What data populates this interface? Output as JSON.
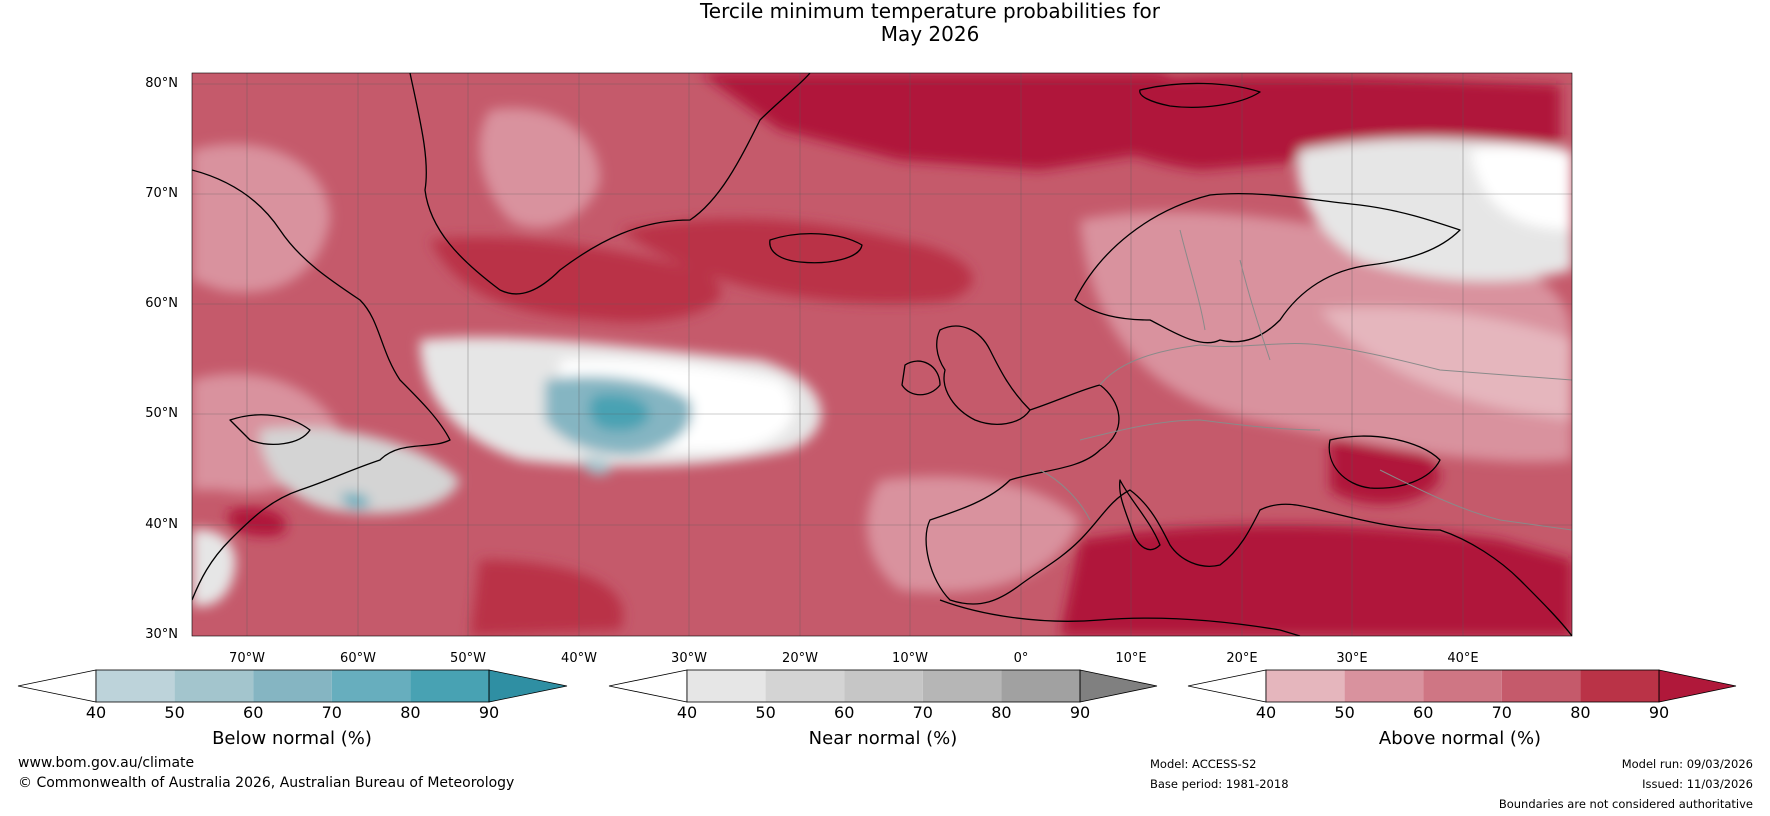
{
  "title_line1": "Tercile minimum temperature probabilities for",
  "title_line2": "May 2026",
  "map": {
    "lat_labels": [
      "80°N",
      "70°N",
      "60°N",
      "50°N",
      "40°N",
      "30°N"
    ],
    "lon_labels": [
      "70°W",
      "60°W",
      "50°W",
      "40°W",
      "30°W",
      "20°W",
      "10°W",
      "0°",
      "10°E",
      "20°E",
      "30°E",
      "40°E"
    ],
    "land_outline_color": "#000000",
    "border_color": "#8a8a8a"
  },
  "colorbars": [
    {
      "title": "Below normal (%)",
      "ticks": [
        "40",
        "50",
        "60",
        "70",
        "80",
        "90"
      ],
      "colors": [
        "#ffffff",
        "#bdd3da",
        "#a3c5cd",
        "#85b5c2",
        "#67aebe",
        "#48a2b3",
        "#2f8fa3"
      ]
    },
    {
      "title": "Near normal (%)",
      "ticks": [
        "40",
        "50",
        "60",
        "70",
        "80",
        "90"
      ],
      "colors": [
        "#ffffff",
        "#e6e6e6",
        "#d4d4d4",
        "#c6c6c6",
        "#b6b6b6",
        "#a1a1a1",
        "#808080"
      ]
    },
    {
      "title": "Above normal (%)",
      "ticks": [
        "40",
        "50",
        "60",
        "70",
        "80",
        "90"
      ],
      "colors": [
        "#ffffff",
        "#e5b6bd",
        "#d9929e",
        "#cf7684",
        "#c55a6b",
        "#ba3347",
        "#b0183a"
      ]
    }
  ],
  "footer": {
    "website": "www.bom.gov.au/climate",
    "copyright": "© Commonwealth of Australia 2026, Australian Bureau of Meteorology",
    "model": "Model: ACCESS-S2",
    "base_period": "Base period: 1981-2018",
    "model_run": "Model run: 09/03/2026",
    "issued": "Issued: 11/03/2026",
    "disclaimer": "Boundaries are not considered authoritative"
  }
}
